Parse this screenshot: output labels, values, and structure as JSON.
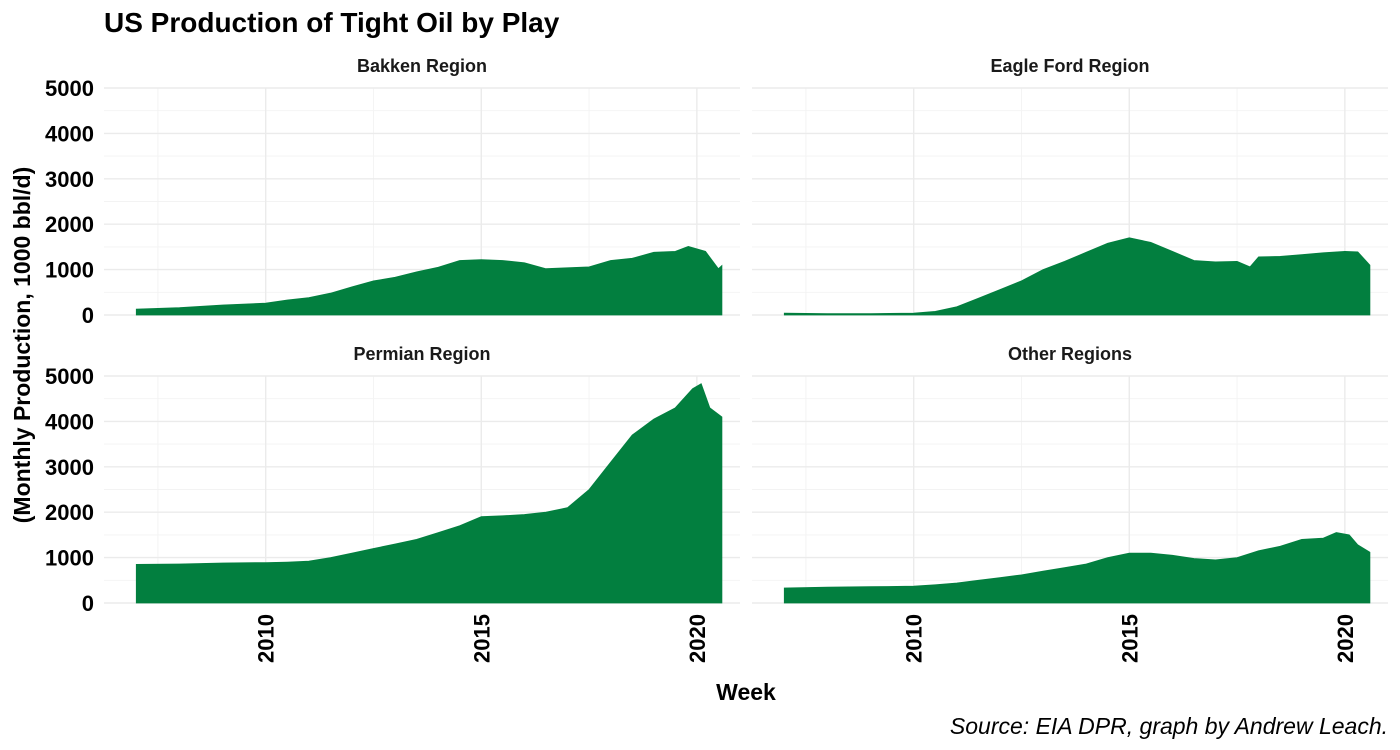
{
  "chart_data": {
    "type": "area",
    "title": "US Production of Tight Oil by Play",
    "xlabel": "Week",
    "ylabel": "(Monthly Production, 1000 bbl/d)",
    "caption": "Source: EIA DPR, graph by Andrew Leach.",
    "xlim": [
      2006.25,
      2021.0
    ],
    "ylim": [
      0,
      5000
    ],
    "x_ticks": [
      2010,
      2015,
      2020
    ],
    "y_ticks": [
      0,
      1000,
      2000,
      3000,
      4000,
      5000
    ],
    "fill_color": "#027f3f",
    "grid": true,
    "panels": [
      {
        "name": "Bakken Region",
        "x": [
          2007.0,
          2008.0,
          2009.0,
          2010.0,
          2010.5,
          2011.0,
          2011.5,
          2012.0,
          2012.5,
          2013.0,
          2013.5,
          2014.0,
          2014.5,
          2015.0,
          2015.5,
          2016.0,
          2016.5,
          2017.0,
          2017.5,
          2018.0,
          2018.5,
          2019.0,
          2019.5,
          2019.8,
          2020.2,
          2020.5,
          2020.58
        ],
        "values": [
          130,
          160,
          220,
          260,
          330,
          380,
          480,
          620,
          750,
          830,
          950,
          1050,
          1200,
          1220,
          1200,
          1150,
          1020,
          1040,
          1060,
          1200,
          1250,
          1380,
          1400,
          1510,
          1400,
          1020,
          1090
        ]
      },
      {
        "name": "Eagle Ford Region",
        "x": [
          2007.0,
          2008.0,
          2009.0,
          2010.0,
          2010.5,
          2011.0,
          2011.5,
          2012.0,
          2012.5,
          2013.0,
          2013.5,
          2014.0,
          2014.5,
          2015.0,
          2015.5,
          2016.0,
          2016.5,
          2017.0,
          2017.5,
          2017.8,
          2018.0,
          2018.5,
          2019.0,
          2019.5,
          2020.0,
          2020.3,
          2020.58
        ],
        "values": [
          40,
          30,
          30,
          40,
          80,
          180,
          370,
          560,
          750,
          1000,
          1180,
          1380,
          1580,
          1700,
          1600,
          1400,
          1200,
          1170,
          1180,
          1060,
          1280,
          1290,
          1330,
          1370,
          1400,
          1390,
          1100
        ]
      },
      {
        "name": "Permian Region",
        "x": [
          2007.0,
          2008.0,
          2009.0,
          2010.0,
          2010.5,
          2011.0,
          2011.5,
          2012.0,
          2012.5,
          2013.0,
          2013.5,
          2014.0,
          2014.5,
          2015.0,
          2015.5,
          2016.0,
          2016.5,
          2017.0,
          2017.5,
          2018.0,
          2018.5,
          2019.0,
          2019.5,
          2019.9,
          2020.1,
          2020.3,
          2020.58
        ],
        "values": [
          850,
          860,
          880,
          890,
          900,
          920,
          1000,
          1100,
          1200,
          1300,
          1400,
          1550,
          1700,
          1900,
          1920,
          1950,
          2000,
          2100,
          2500,
          3100,
          3700,
          4050,
          4300,
          4720,
          4830,
          4300,
          4100
        ]
      },
      {
        "name": "Other Regions",
        "x": [
          2007.0,
          2008.0,
          2009.0,
          2010.0,
          2010.5,
          2011.0,
          2011.5,
          2012.0,
          2012.5,
          2013.0,
          2013.5,
          2014.0,
          2014.5,
          2015.0,
          2015.5,
          2016.0,
          2016.5,
          2017.0,
          2017.5,
          2018.0,
          2018.5,
          2019.0,
          2019.5,
          2019.8,
          2020.1,
          2020.3,
          2020.58
        ],
        "values": [
          330,
          350,
          360,
          370,
          400,
          440,
          500,
          560,
          620,
          700,
          780,
          860,
          1000,
          1100,
          1100,
          1050,
          980,
          950,
          1000,
          1150,
          1250,
          1400,
          1430,
          1550,
          1500,
          1280,
          1120
        ]
      }
    ]
  }
}
